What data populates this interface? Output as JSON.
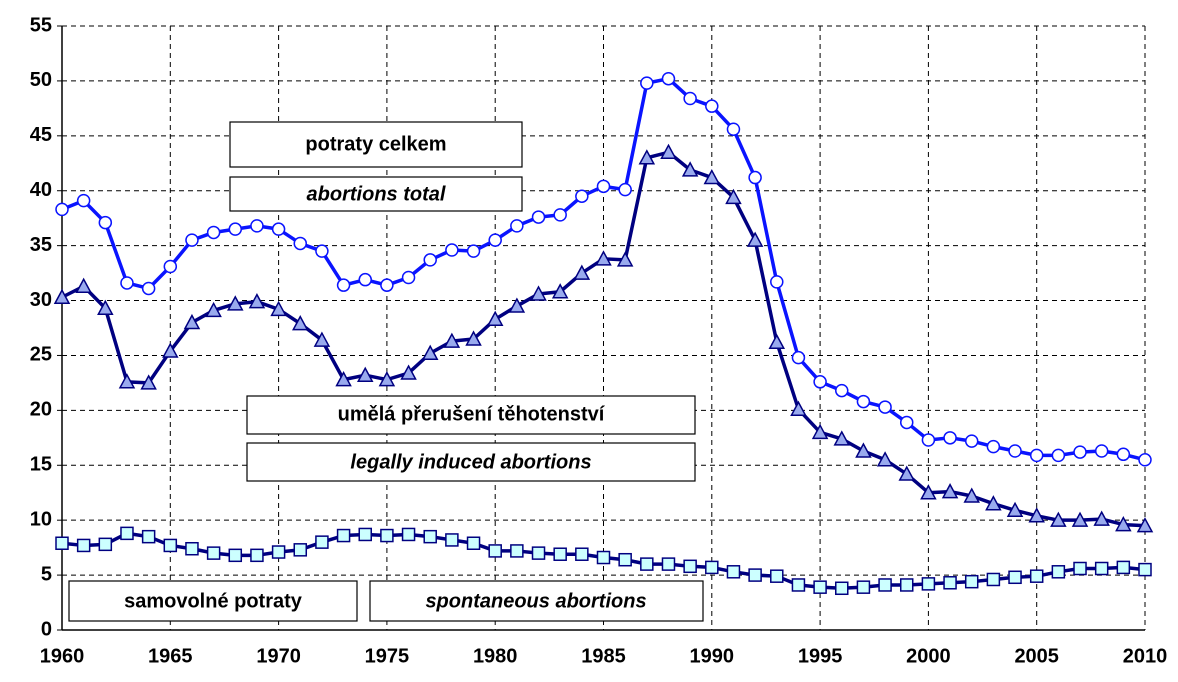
{
  "chart_data": {
    "type": "line",
    "x": [
      1960,
      1961,
      1962,
      1963,
      1964,
      1965,
      1966,
      1967,
      1968,
      1969,
      1970,
      1971,
      1972,
      1973,
      1974,
      1975,
      1976,
      1977,
      1978,
      1979,
      1980,
      1981,
      1982,
      1983,
      1984,
      1985,
      1986,
      1987,
      1988,
      1989,
      1990,
      1991,
      1992,
      1993,
      1994,
      1995,
      1996,
      1997,
      1998,
      1999,
      2000,
      2001,
      2002,
      2003,
      2004,
      2005,
      2006,
      2007,
      2008,
      2009,
      2010
    ],
    "series": [
      {
        "name": "potraty celkem",
        "label_en": "abortions total",
        "color": "#0a14ff",
        "marker": "circle",
        "marker_fill": "#ffffff",
        "values": [
          38.3,
          39.1,
          37.1,
          31.6,
          31.1,
          33.1,
          35.5,
          36.2,
          36.5,
          36.8,
          36.5,
          35.2,
          34.5,
          31.4,
          31.9,
          31.4,
          32.1,
          33.7,
          34.6,
          34.5,
          35.5,
          36.8,
          37.6,
          37.8,
          39.5,
          40.4,
          40.1,
          49.8,
          50.2,
          48.4,
          47.7,
          45.6,
          41.2,
          31.7,
          24.8,
          22.6,
          21.8,
          20.8,
          20.3,
          18.9,
          17.3,
          17.5,
          17.2,
          16.7,
          16.3,
          15.9,
          15.9,
          16.2,
          16.3,
          16.0,
          15.5
        ]
      },
      {
        "name": "umělá přerušení těhotenství",
        "label_en": "legally induced abortions",
        "color": "#000080",
        "marker": "triangle",
        "marker_fill": "#99aaee",
        "values": [
          30.3,
          31.3,
          29.3,
          22.6,
          22.5,
          25.4,
          28.0,
          29.1,
          29.7,
          29.9,
          29.2,
          27.9,
          26.4,
          22.8,
          23.2,
          22.8,
          23.4,
          25.2,
          26.3,
          26.5,
          28.3,
          29.5,
          30.6,
          30.8,
          32.5,
          33.8,
          33.7,
          43.0,
          43.5,
          41.9,
          41.2,
          39.4,
          35.5,
          26.2,
          20.1,
          18.0,
          17.4,
          16.3,
          15.5,
          14.2,
          12.5,
          12.6,
          12.2,
          11.5,
          10.9,
          10.4,
          10.0,
          10.0,
          10.1,
          9.6,
          9.5
        ]
      },
      {
        "name": "samovolné potraty",
        "label_en": "spontaneous abortions",
        "color": "#000080",
        "marker": "square",
        "marker_fill": "#ccffff",
        "values": [
          7.9,
          7.7,
          7.8,
          8.8,
          8.5,
          7.7,
          7.4,
          7.0,
          6.8,
          6.8,
          7.1,
          7.3,
          8.0,
          8.6,
          8.7,
          8.6,
          8.7,
          8.5,
          8.2,
          7.9,
          7.2,
          7.2,
          7.0,
          6.9,
          6.9,
          6.6,
          6.4,
          6.0,
          6.0,
          5.8,
          5.7,
          5.3,
          5.0,
          4.9,
          4.1,
          3.9,
          3.8,
          3.9,
          4.1,
          4.1,
          4.2,
          4.3,
          4.4,
          4.6,
          4.8,
          4.9,
          5.3,
          5.6,
          5.6,
          5.7,
          5.5
        ]
      }
    ],
    "xlim": [
      1960,
      2010
    ],
    "xticks": [
      1960,
      1965,
      1970,
      1975,
      1980,
      1985,
      1990,
      1995,
      2000,
      2005,
      2010
    ],
    "ylim": [
      0,
      55
    ],
    "yticks": [
      0,
      5,
      10,
      15,
      20,
      25,
      30,
      35,
      40,
      45,
      50,
      55
    ],
    "grid": true
  }
}
